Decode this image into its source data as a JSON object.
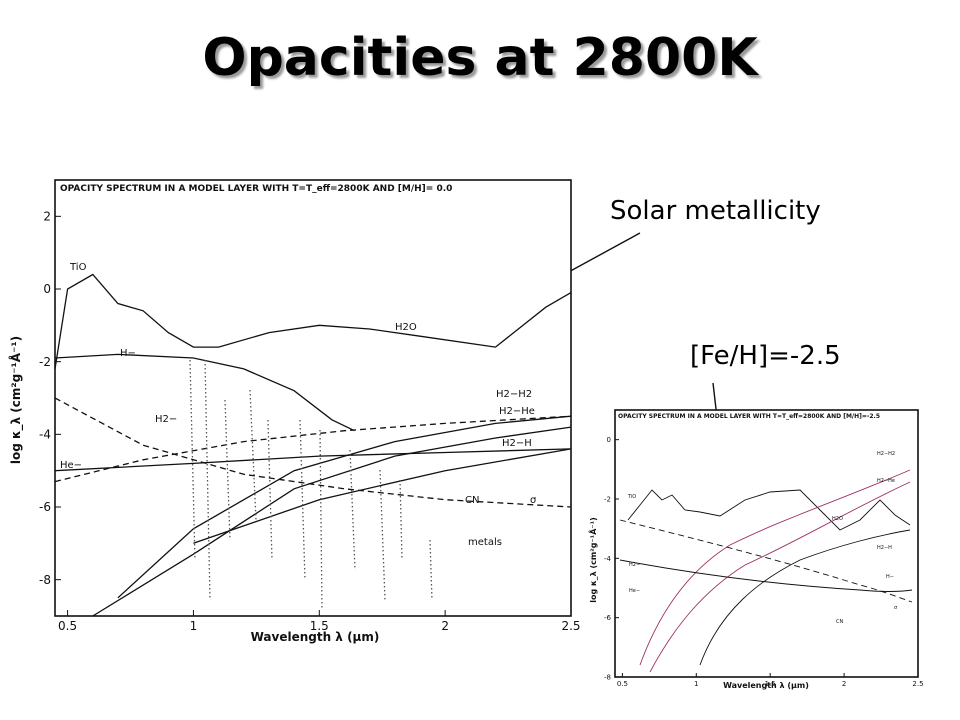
{
  "slide": {
    "title": "Opacities at 2800K",
    "annotations": {
      "solar": "Solar metallicity",
      "metal_poor": "[Fe/H]=-2.5"
    }
  },
  "chart_data": [
    {
      "type": "line",
      "title": "OPACITY SPECTRUM IN A MODEL LAYER WITH T=T_eff=2800K AND [M/H]= 0.0",
      "xlabel": "Wavelength λ (μm)",
      "ylabel": "log κ_λ (cm²g⁻¹Å⁻¹)",
      "xlim": [
        0.45,
        2.5
      ],
      "ylim": [
        -9,
        3
      ],
      "xticks": [
        "0.5",
        "1",
        "1.5",
        "2",
        "2.5"
      ],
      "yticks": [
        "2",
        "0",
        "-2",
        "-4",
        "-6",
        "-8"
      ],
      "series": [
        {
          "name": "TiO / H2O",
          "x": [
            0.45,
            0.5,
            0.6,
            0.7,
            0.8,
            0.9,
            1.0,
            1.1,
            1.3,
            1.5,
            1.7,
            1.9,
            2.2,
            2.4,
            2.5
          ],
          "y": [
            -2.2,
            0.0,
            0.4,
            -0.4,
            -0.6,
            -1.2,
            -1.6,
            -1.6,
            -1.2,
            -1.0,
            -1.1,
            -1.3,
            -1.6,
            -0.5,
            -0.1
          ]
        },
        {
          "name": "H−",
          "x": [
            0.45,
            0.7,
            1.0,
            1.2,
            1.4,
            1.55,
            1.64
          ],
          "y": [
            -1.9,
            -1.8,
            -1.9,
            -2.2,
            -2.8,
            -3.6,
            -3.9
          ]
        },
        {
          "name": "H2−",
          "x": [
            0.45,
            0.8,
            1.2,
            1.6,
            2.0,
            2.5
          ],
          "y": [
            -5.3,
            -4.7,
            -4.2,
            -3.9,
            -3.7,
            -3.5
          ]
        },
        {
          "name": "H2−H2",
          "x": [
            0.7,
            1.0,
            1.4,
            1.8,
            2.2,
            2.5
          ],
          "y": [
            -8.5,
            -6.6,
            -5.0,
            -4.2,
            -3.7,
            -3.5
          ]
        },
        {
          "name": "H2−He",
          "x": [
            0.6,
            1.0,
            1.4,
            1.8,
            2.2,
            2.5
          ],
          "y": [
            -9.0,
            -7.3,
            -5.5,
            -4.6,
            -4.1,
            -3.8
          ]
        },
        {
          "name": "He−",
          "x": [
            0.45,
            1.0,
            1.5,
            2.0,
            2.5
          ],
          "y": [
            -5.0,
            -4.8,
            -4.6,
            -4.5,
            -4.4
          ]
        },
        {
          "name": "σ",
          "x": [
            0.45,
            0.8,
            1.2,
            1.6,
            2.0,
            2.5
          ],
          "y": [
            -3.0,
            -4.3,
            -5.1,
            -5.5,
            -5.8,
            -6.0
          ]
        },
        {
          "name": "H2−H",
          "x": [
            1.0,
            1.5,
            2.0,
            2.5
          ],
          "y": [
            -7.0,
            -5.8,
            -5.0,
            -4.4
          ]
        }
      ],
      "annotations": [
        "TiO",
        "H−",
        "H2O",
        "H2−",
        "H2−H2",
        "H2−He",
        "H2−H",
        "He−",
        "CN",
        "σ",
        "metals"
      ]
    },
    {
      "type": "line",
      "title": "OPACITY SPECTRUM IN A MODEL LAYER WITH T=T_eff=2800K AND [M/H]=-2.5",
      "xlabel": "Wavelength λ (μm)",
      "ylabel": "log κ_λ (cm²g⁻¹Å⁻¹)",
      "xlim": [
        0.45,
        2.5
      ],
      "ylim": [
        -8,
        1
      ],
      "xticks": [
        "0.5",
        "1",
        "1.5",
        "2",
        "2.5"
      ],
      "yticks": [
        "0",
        "-2",
        "-4",
        "-6",
        "-8"
      ],
      "annotations": [
        "TiO",
        "H2O",
        "H2−H2",
        "H2−He",
        "H2−H",
        "H−",
        "H2−",
        "He−",
        "CN",
        "σ"
      ]
    }
  ]
}
